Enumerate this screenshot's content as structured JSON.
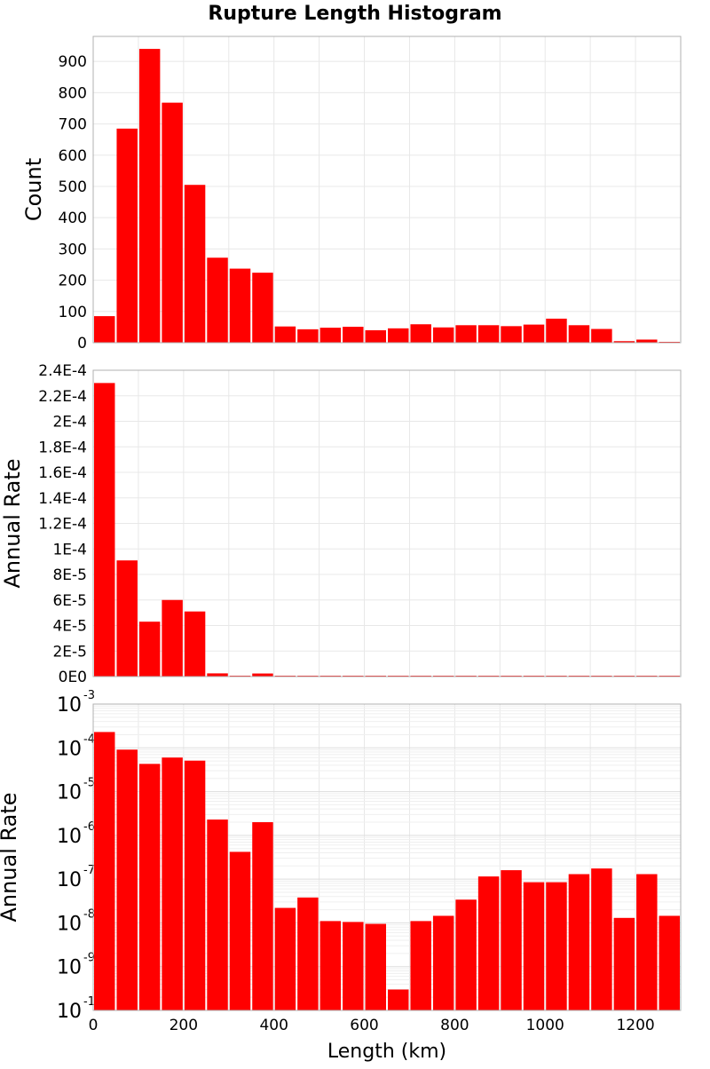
{
  "title": "Rupture Length Histogram",
  "xlabel": "Length (km)",
  "chart_data": [
    {
      "type": "bar",
      "scale": "linear",
      "title": "Rupture Length Histogram",
      "xlabel": "Length (km)",
      "ylabel": "Count",
      "bin_width": 50,
      "xlim": [
        0,
        1300
      ],
      "ylim": [
        0,
        980
      ],
      "x_ticks": [
        "0",
        "200",
        "400",
        "600",
        "800",
        "1000",
        "1200"
      ],
      "y_ticks": [
        "0",
        "100",
        "200",
        "300",
        "400",
        "500",
        "600",
        "700",
        "800",
        "900"
      ],
      "x": [
        25,
        75,
        125,
        175,
        225,
        275,
        325,
        375,
        425,
        475,
        525,
        575,
        625,
        675,
        725,
        775,
        825,
        875,
        925,
        975,
        1025,
        1075,
        1125,
        1175,
        1225,
        1275
      ],
      "values": [
        85,
        685,
        940,
        768,
        505,
        272,
        237,
        224,
        52,
        43,
        48,
        51,
        40,
        46,
        59,
        49,
        56,
        56,
        53,
        58,
        77,
        56,
        44,
        5,
        10,
        2
      ],
      "color": "#ff0000",
      "grid": true
    },
    {
      "type": "bar",
      "scale": "linear",
      "xlabel": "Length (km)",
      "ylabel": "Annual Rate",
      "bin_width": 50,
      "xlim": [
        0,
        1300
      ],
      "ylim": [
        0,
        0.00024
      ],
      "x_ticks": [
        "0",
        "200",
        "400",
        "600",
        "800",
        "1000",
        "1200"
      ],
      "y_ticks": [
        "0E0",
        "2E-5",
        "4E-5",
        "6E-5",
        "8E-5",
        "1E-4",
        "1.2E-4",
        "1.4E-4",
        "1.6E-4",
        "1.8E-4",
        "2E-4",
        "2.2E-4",
        "2.4E-4"
      ],
      "x": [
        25,
        75,
        125,
        175,
        225,
        275,
        325,
        375,
        425,
        475,
        525,
        575,
        625,
        675,
        725,
        775,
        825,
        875,
        925,
        975,
        1025,
        1075,
        1125,
        1175,
        1225,
        1275
      ],
      "values": [
        0.00023,
        9.1e-05,
        4.3e-05,
        6e-05,
        5.1e-05,
        2.5e-06,
        6e-07,
        2.4e-06,
        2.5e-08,
        4.5e-08,
        1.2e-08,
        1.1e-08,
        1e-08,
        4e-10,
        1.2e-08,
        1.6e-08,
        3.5e-08,
        1.2e-07,
        1.6e-07,
        8.5e-08,
        8.5e-08,
        1.3e-07,
        1.7e-07,
        1.4e-08,
        1.3e-07,
        1.5e-08
      ],
      "color": "#ff0000",
      "grid": true
    },
    {
      "type": "bar",
      "scale": "log",
      "xlabel": "Length (km)",
      "ylabel": "Annual Rate",
      "bin_width": 50,
      "xlim": [
        0,
        1300
      ],
      "ylim": [
        1e-10,
        0.001
      ],
      "x_ticks": [
        "0",
        "200",
        "400",
        "600",
        "800",
        "1000",
        "1200"
      ],
      "y_tick_exponents": [
        "-10",
        "-9",
        "-8",
        "-7",
        "-6",
        "-5",
        "-4",
        "-3"
      ],
      "x": [
        25,
        75,
        125,
        175,
        225,
        275,
        325,
        375,
        425,
        475,
        525,
        575,
        625,
        675,
        725,
        775,
        825,
        875,
        925,
        975,
        1025,
        1075,
        1125,
        1175,
        1225,
        1275
      ],
      "values": [
        0.00023,
        9.1e-05,
        4.3e-05,
        6e-05,
        5.1e-05,
        2.3e-06,
        4.2e-07,
        2e-06,
        2.2e-08,
        3.8e-08,
        1.1e-08,
        1.05e-08,
        9.5e-09,
        3e-10,
        1.1e-08,
        1.45e-08,
        3.4e-08,
        1.15e-07,
        1.6e-07,
        8.5e-08,
        8.5e-08,
        1.3e-07,
        1.75e-07,
        1.3e-08,
        1.3e-07,
        1.45e-08
      ],
      "color": "#ff0000",
      "grid": true
    }
  ]
}
